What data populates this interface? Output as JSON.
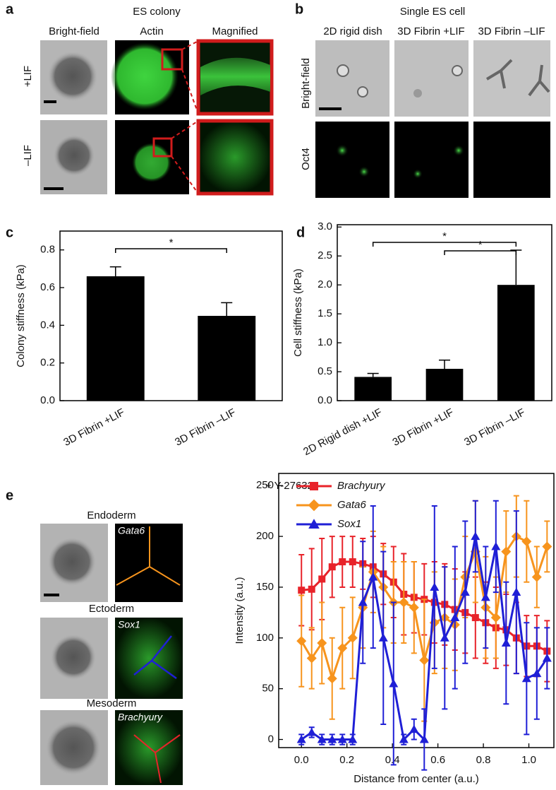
{
  "figure": {
    "a": {
      "label": "a",
      "title": "ES colony",
      "columns": [
        "Bright-field",
        "Actin",
        "Magnified"
      ],
      "rows": [
        "+LIF",
        "–LIF"
      ]
    },
    "b": {
      "label": "b",
      "title": "Single ES cell",
      "columns": [
        "2D rigid dish",
        "3D Fibrin +LIF",
        "3D Fibrin –LIF"
      ],
      "rows": [
        "Bright-field",
        "Oct4"
      ]
    },
    "e": {
      "label": "e",
      "treatment": "+ Y-27632",
      "rows": [
        "Endoderm",
        "Ectoderm",
        "Mesoderm"
      ],
      "markers": [
        "Gata6",
        "Sox1",
        "Brachyury"
      ]
    }
  },
  "chart_data": [
    {
      "type": "bar",
      "panel_label": "c",
      "ylabel": "Colony stiffness (kPa)",
      "categories": [
        "3D Fibrin +LIF",
        "3D Fibrin –LIF"
      ],
      "values": [
        0.66,
        0.45
      ],
      "errors": [
        0.05,
        0.07
      ],
      "color": "#000000",
      "ylim": [
        0,
        0.9
      ],
      "yticks": [
        {
          "value": 0,
          "label": "0.0"
        },
        0.2,
        0.4,
        0.6,
        0.8
      ],
      "annotations": [
        "*"
      ]
    },
    {
      "type": "bar",
      "panel_label": "d",
      "ylabel": "Cell stiffness (kPa)",
      "categories": [
        "2D Rigid dish +LIF",
        "3D Fibrin +LIF",
        "3D Fibrin –LIF"
      ],
      "values": [
        0.41,
        0.55,
        2.0
      ],
      "errors": [
        0.06,
        0.15,
        0.6
      ],
      "color": "#000000",
      "ylim": [
        0,
        3.04
      ],
      "yticks": [
        {
          "value": 0,
          "label": "0.0"
        },
        0.5,
        {
          "value": 1,
          "label": "1.0"
        },
        1.5,
        {
          "value": 2,
          "label": "2.0"
        },
        2.5,
        {
          "value": 3,
          "label": "3.0"
        }
      ],
      "annotations": [
        "*",
        "*"
      ]
    },
    {
      "type": "line",
      "ylabel": "Intensity (a.u.)",
      "xlabel": "Distance from center (a.u.)",
      "x": [
        0,
        0.045,
        0.09,
        0.135,
        0.18,
        0.225,
        0.27,
        0.315,
        0.36,
        0.405,
        0.45,
        0.495,
        0.54,
        0.585,
        0.63,
        0.675,
        0.72,
        0.765,
        0.81,
        0.855,
        0.9,
        0.945,
        0.99,
        1.035,
        1.08
      ],
      "series": [
        {
          "name": "Brachyury",
          "color": "#e8232a",
          "marker": "square",
          "values": [
            147,
            148,
            158,
            170,
            175,
            175,
            173,
            170,
            163,
            155,
            143,
            140,
            138,
            135,
            133,
            128,
            125,
            120,
            115,
            110,
            108,
            100,
            92,
            92,
            87
          ],
          "errors": [
            35,
            40,
            40,
            30,
            25,
            25,
            25,
            30,
            30,
            35,
            40,
            35,
            35,
            40,
            40,
            40,
            40,
            40,
            40,
            40,
            35,
            35,
            30,
            30,
            30
          ]
        },
        {
          "name": "Gata6",
          "color": "#f7941d",
          "marker": "diamond",
          "values": [
            97,
            80,
            95,
            60,
            90,
            100,
            130,
            165,
            150,
            135,
            135,
            130,
            78,
            115,
            120,
            113,
            160,
            185,
            130,
            120,
            185,
            200,
            195,
            160,
            190
          ],
          "errors": [
            45,
            30,
            40,
            40,
            40,
            40,
            40,
            40,
            40,
            40,
            40,
            45,
            60,
            50,
            50,
            45,
            40,
            50,
            50,
            40,
            40,
            40,
            40,
            30,
            25
          ]
        },
        {
          "name": "Sox1",
          "color": "#1f1fd6",
          "marker": "triangle",
          "values": [
            0,
            7,
            0,
            0,
            0,
            0,
            135,
            160,
            100,
            55,
            0,
            10,
            0,
            150,
            100,
            120,
            145,
            200,
            140,
            190,
            95,
            145,
            60,
            65,
            80
          ],
          "errors": [
            5,
            5,
            5,
            5,
            5,
            5,
            60,
            70,
            85,
            80,
            5,
            10,
            30,
            80,
            70,
            70,
            70,
            35,
            50,
            45,
            60,
            80,
            55,
            45,
            30
          ]
        }
      ],
      "xlim": [
        -0.1,
        1.11
      ],
      "xticks": [
        {
          "value": 0,
          "label": "0.0"
        },
        0.2,
        0.4,
        0.6,
        0.8,
        {
          "value": 1,
          "label": "1.0"
        }
      ],
      "ylim": [
        -8,
        262
      ],
      "yticks": [
        0,
        50,
        100,
        150,
        200,
        250
      ]
    }
  ]
}
